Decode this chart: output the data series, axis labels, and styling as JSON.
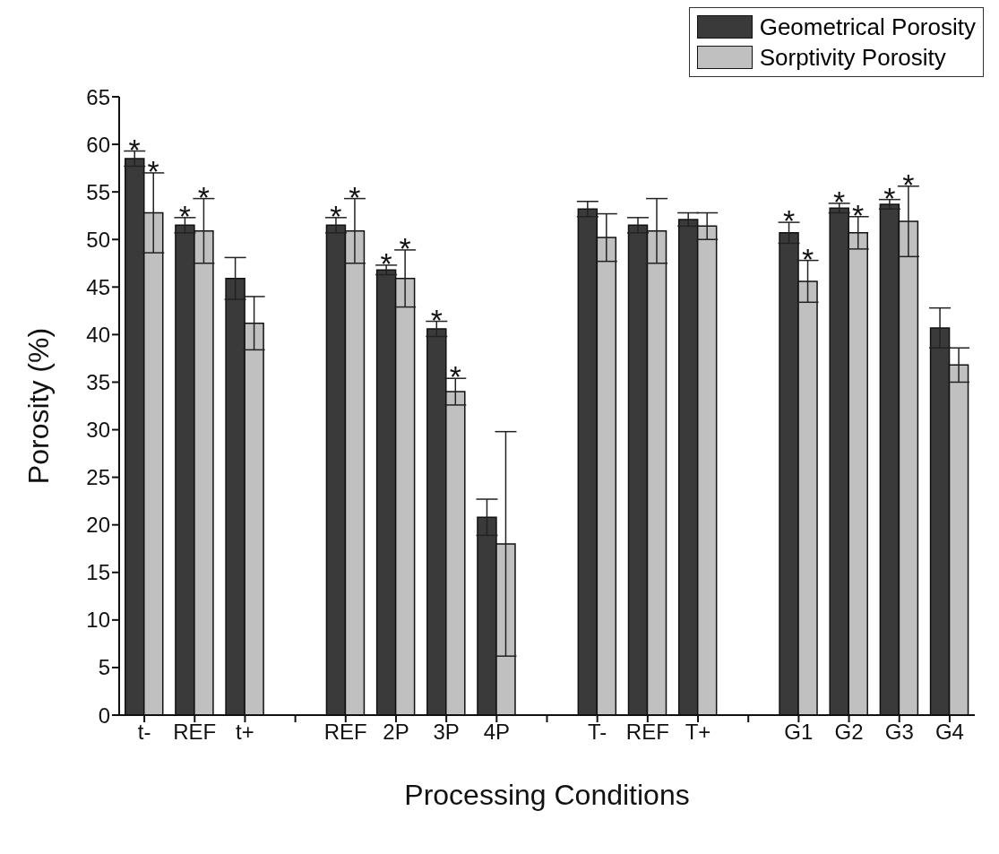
{
  "chart_data": {
    "type": "bar",
    "xlabel": "Processing Conditions",
    "ylabel": "Porosity (%)",
    "categories": [
      "t-",
      "REF",
      "t+",
      null,
      "REF",
      "2P",
      "3P",
      "4P",
      null,
      "T-",
      "REF",
      "T+",
      null,
      "G1",
      "G2",
      "G3",
      "G4"
    ],
    "series": [
      {
        "name": "Geometrical Porosity",
        "color": "#3a3a3a",
        "values": [
          58.5,
          51.5,
          45.9,
          null,
          51.5,
          46.8,
          40.6,
          20.8,
          null,
          53.2,
          51.5,
          52.1,
          null,
          50.7,
          53.3,
          53.7,
          40.7
        ],
        "errors": [
          0.8,
          0.8,
          2.2,
          null,
          0.8,
          0.5,
          0.8,
          1.9,
          null,
          0.8,
          0.8,
          0.7,
          null,
          1.1,
          0.5,
          0.5,
          2.1
        ],
        "value_labels": [
          "*",
          "*",
          null,
          null,
          "*",
          "*",
          "*",
          null,
          null,
          null,
          null,
          null,
          null,
          "*",
          "*",
          "*",
          null
        ]
      },
      {
        "name": "Sorptivity Porosity",
        "color": "#c0c0c0",
        "values": [
          52.8,
          50.9,
          41.2,
          null,
          50.9,
          45.9,
          34.0,
          18.0,
          null,
          50.2,
          50.9,
          51.4,
          null,
          45.6,
          50.7,
          51.9,
          36.8
        ],
        "errors": [
          4.2,
          3.4,
          2.8,
          null,
          3.4,
          3.0,
          1.4,
          11.8,
          null,
          2.5,
          3.4,
          1.4,
          null,
          2.2,
          1.7,
          3.7,
          1.8
        ],
        "value_labels": [
          "*",
          "*",
          null,
          null,
          "*",
          "*",
          "*",
          null,
          null,
          null,
          null,
          null,
          null,
          "*",
          "*",
          "*",
          null
        ]
      }
    ],
    "ylim": [
      0,
      65
    ],
    "yticks": [
      0,
      5,
      10,
      15,
      20,
      25,
      30,
      35,
      40,
      45,
      50,
      55,
      60,
      65
    ],
    "grid": false,
    "legend": "top right"
  }
}
